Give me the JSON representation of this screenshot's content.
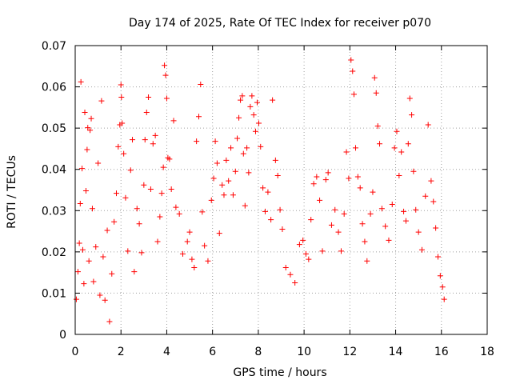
{
  "chart_data": {
    "type": "scatter",
    "title": "Day 174 of 2025, Rate Of TEC Index for receiver p070",
    "xlabel": "GPS time / hours",
    "ylabel": "ROTI / TECUs",
    "xlim": [
      0,
      18
    ],
    "ylim": [
      0,
      0.07
    ],
    "x_ticks": [
      "0",
      "2",
      "4",
      "6",
      "8",
      "10",
      "12",
      "14",
      "16",
      "18"
    ],
    "y_ticks": [
      "0",
      "0.01",
      "0.02",
      "0.03",
      "0.04",
      "0.05",
      "0.06",
      "0.07"
    ],
    "grid": true,
    "marker": "+",
    "color": "#ff0000",
    "series": [
      {
        "points": [
          [
            0.05,
            0.0085
          ],
          [
            0.12,
            0.0152
          ],
          [
            0.18,
            0.0221
          ],
          [
            0.22,
            0.0317
          ],
          [
            0.25,
            0.0612
          ],
          [
            0.3,
            0.0402
          ],
          [
            0.33,
            0.0205
          ],
          [
            0.38,
            0.0123
          ],
          [
            0.42,
            0.0538
          ],
          [
            0.47,
            0.0348
          ],
          [
            0.52,
            0.0448
          ],
          [
            0.55,
            0.0501
          ],
          [
            0.6,
            0.0178
          ],
          [
            0.65,
            0.0495
          ],
          [
            0.7,
            0.0523
          ],
          [
            0.75,
            0.0305
          ],
          [
            0.8,
            0.0128
          ],
          [
            0.9,
            0.0212
          ],
          [
            1.0,
            0.0415
          ],
          [
            1.08,
            0.0095
          ],
          [
            1.15,
            0.0566
          ],
          [
            1.22,
            0.0188
          ],
          [
            1.3,
            0.0083
          ],
          [
            1.4,
            0.0252
          ],
          [
            1.5,
            0.0031
          ],
          [
            1.6,
            0.0147
          ],
          [
            1.7,
            0.0273
          ],
          [
            1.8,
            0.0342
          ],
          [
            1.88,
            0.0455
          ],
          [
            1.95,
            0.0508
          ],
          [
            2.0,
            0.0605
          ],
          [
            2.02,
            0.0575
          ],
          [
            2.05,
            0.0512
          ],
          [
            2.12,
            0.0438
          ],
          [
            2.2,
            0.0331
          ],
          [
            2.3,
            0.0202
          ],
          [
            2.42,
            0.0398
          ],
          [
            2.5,
            0.0472
          ],
          [
            2.58,
            0.0152
          ],
          [
            2.7,
            0.0305
          ],
          [
            2.8,
            0.0268
          ],
          [
            2.9,
            0.0198
          ],
          [
            3.0,
            0.0362
          ],
          [
            3.05,
            0.0472
          ],
          [
            3.12,
            0.0538
          ],
          [
            3.2,
            0.0575
          ],
          [
            3.3,
            0.0352
          ],
          [
            3.4,
            0.0462
          ],
          [
            3.5,
            0.0482
          ],
          [
            3.6,
            0.0225
          ],
          [
            3.7,
            0.0285
          ],
          [
            3.78,
            0.0342
          ],
          [
            3.85,
            0.0405
          ],
          [
            3.9,
            0.0652
          ],
          [
            3.95,
            0.0628
          ],
          [
            4.0,
            0.0572
          ],
          [
            4.05,
            0.0428
          ],
          [
            4.12,
            0.0425
          ],
          [
            4.2,
            0.0352
          ],
          [
            4.3,
            0.0518
          ],
          [
            4.4,
            0.0308
          ],
          [
            4.55,
            0.0292
          ],
          [
            4.7,
            0.0195
          ],
          [
            4.9,
            0.0225
          ],
          [
            5.0,
            0.0248
          ],
          [
            5.1,
            0.0182
          ],
          [
            5.2,
            0.0162
          ],
          [
            5.3,
            0.0468
          ],
          [
            5.4,
            0.0528
          ],
          [
            5.48,
            0.0606
          ],
          [
            5.55,
            0.0297
          ],
          [
            5.65,
            0.0215
          ],
          [
            5.8,
            0.0178
          ],
          [
            5.95,
            0.0325
          ],
          [
            6.05,
            0.0378
          ],
          [
            6.12,
            0.0468
          ],
          [
            6.2,
            0.0415
          ],
          [
            6.3,
            0.0245
          ],
          [
            6.42,
            0.0362
          ],
          [
            6.5,
            0.0338
          ],
          [
            6.6,
            0.0422
          ],
          [
            6.7,
            0.0372
          ],
          [
            6.8,
            0.0452
          ],
          [
            6.9,
            0.0338
          ],
          [
            7.0,
            0.0395
          ],
          [
            7.08,
            0.0475
          ],
          [
            7.15,
            0.0525
          ],
          [
            7.22,
            0.0568
          ],
          [
            7.3,
            0.0578
          ],
          [
            7.35,
            0.0438
          ],
          [
            7.42,
            0.0312
          ],
          [
            7.5,
            0.0452
          ],
          [
            7.58,
            0.0392
          ],
          [
            7.65,
            0.0552
          ],
          [
            7.72,
            0.0578
          ],
          [
            7.8,
            0.0532
          ],
          [
            7.88,
            0.0492
          ],
          [
            7.95,
            0.0562
          ],
          [
            8.02,
            0.0512
          ],
          [
            8.1,
            0.0455
          ],
          [
            8.2,
            0.0355
          ],
          [
            8.3,
            0.0298
          ],
          [
            8.42,
            0.0345
          ],
          [
            8.55,
            0.0278
          ],
          [
            8.62,
            0.0568
          ],
          [
            8.75,
            0.0422
          ],
          [
            8.85,
            0.0385
          ],
          [
            8.95,
            0.0302
          ],
          [
            9.05,
            0.0255
          ],
          [
            9.2,
            0.0162
          ],
          [
            9.4,
            0.0145
          ],
          [
            9.6,
            0.0125
          ],
          [
            9.8,
            0.0218
          ],
          [
            9.95,
            0.0228
          ],
          [
            10.08,
            0.0195
          ],
          [
            10.2,
            0.0182
          ],
          [
            10.3,
            0.0278
          ],
          [
            10.42,
            0.0365
          ],
          [
            10.55,
            0.0382
          ],
          [
            10.68,
            0.0325
          ],
          [
            10.8,
            0.0202
          ],
          [
            10.95,
            0.0375
          ],
          [
            11.05,
            0.0392
          ],
          [
            11.2,
            0.0265
          ],
          [
            11.35,
            0.0302
          ],
          [
            11.5,
            0.0248
          ],
          [
            11.62,
            0.0202
          ],
          [
            11.75,
            0.0292
          ],
          [
            11.85,
            0.0442
          ],
          [
            11.95,
            0.0378
          ],
          [
            12.05,
            0.0665
          ],
          [
            12.12,
            0.0638
          ],
          [
            12.18,
            0.0582
          ],
          [
            12.25,
            0.0452
          ],
          [
            12.35,
            0.0382
          ],
          [
            12.45,
            0.0355
          ],
          [
            12.55,
            0.0268
          ],
          [
            12.65,
            0.0225
          ],
          [
            12.75,
            0.0178
          ],
          [
            12.9,
            0.0292
          ],
          [
            13.0,
            0.0345
          ],
          [
            13.08,
            0.0622
          ],
          [
            13.15,
            0.0585
          ],
          [
            13.22,
            0.0505
          ],
          [
            13.3,
            0.0462
          ],
          [
            13.4,
            0.0305
          ],
          [
            13.55,
            0.0262
          ],
          [
            13.7,
            0.0228
          ],
          [
            13.85,
            0.0315
          ],
          [
            13.95,
            0.0452
          ],
          [
            14.05,
            0.0492
          ],
          [
            14.15,
            0.0385
          ],
          [
            14.25,
            0.0442
          ],
          [
            14.35,
            0.0298
          ],
          [
            14.45,
            0.0275
          ],
          [
            14.55,
            0.0462
          ],
          [
            14.62,
            0.0572
          ],
          [
            14.7,
            0.0532
          ],
          [
            14.78,
            0.0395
          ],
          [
            14.88,
            0.0302
          ],
          [
            15.0,
            0.0248
          ],
          [
            15.15,
            0.0205
          ],
          [
            15.3,
            0.0335
          ],
          [
            15.42,
            0.0508
          ],
          [
            15.55,
            0.0372
          ],
          [
            15.65,
            0.0322
          ],
          [
            15.75,
            0.0258
          ],
          [
            15.85,
            0.0188
          ],
          [
            15.95,
            0.0142
          ],
          [
            16.05,
            0.0115
          ],
          [
            16.12,
            0.0085
          ]
        ]
      }
    ]
  }
}
